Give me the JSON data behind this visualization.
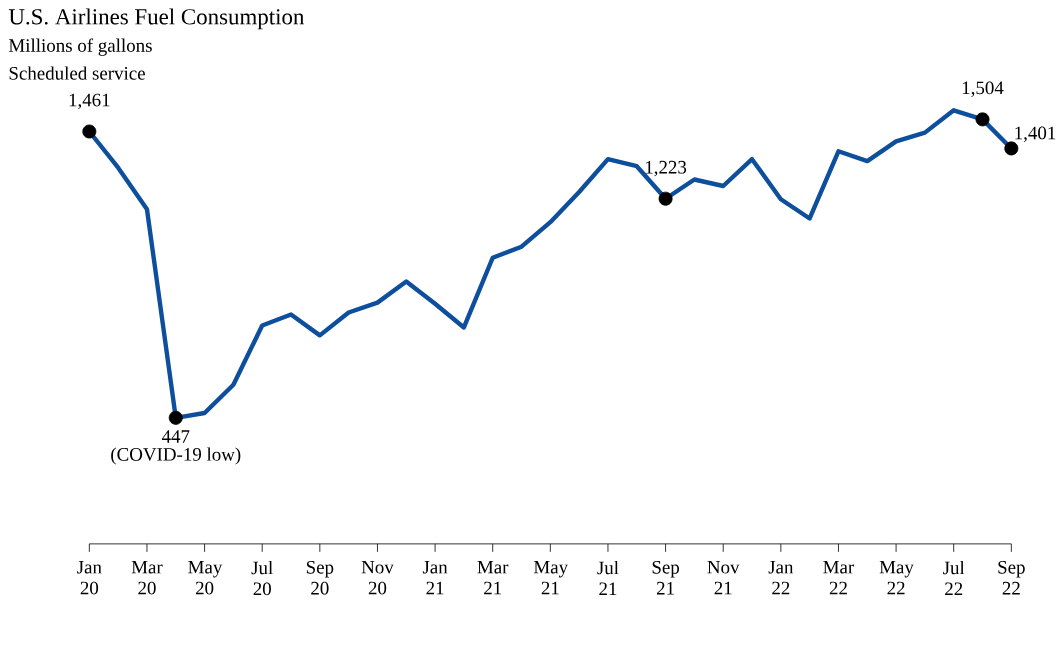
{
  "chart_data": {
    "type": "line",
    "title": "U.S. Airlines Fuel Consumption",
    "subtitle": "Millions of gallons",
    "annotations": [
      "Scheduled service",
      {
        "text": "(COVID-19 low)",
        "y": 447
      }
    ],
    "categories": [
      "Jan 20",
      null,
      "Mar 20",
      null,
      "May 20",
      null,
      "Jul 20",
      null,
      "Sep 20",
      null,
      "Nov 20",
      null,
      "Jan 21",
      null,
      "Mar 21",
      null,
      "May 21",
      null,
      "Jul 21",
      null,
      "Sep 21",
      null,
      "Nov 21",
      null,
      "Jan 22",
      null,
      "Mar 22",
      null,
      "May 22",
      null,
      "Jul 22",
      null,
      "Sep 22"
    ],
    "series": [
      {
        "color": "#0d4f9c",
        "values": [
          1461,
          1333,
          1186,
          447,
          464,
          564,
          774,
          813,
          739,
          820,
          855,
          930,
          851,
          767,
          1014,
          1053,
          1140,
          1247,
          1363,
          1338,
          1223,
          1291,
          1268,
          1363,
          1221,
          1153,
          1391,
          1356,
          1426,
          1457,
          1536,
          1504,
          1401
        ],
        "value_labels": [
          "1,461",
          null,
          null,
          "447",
          null,
          null,
          null,
          null,
          null,
          null,
          null,
          null,
          null,
          null,
          null,
          null,
          null,
          null,
          null,
          null,
          "1,223",
          null,
          null,
          null,
          null,
          null,
          null,
          null,
          null,
          null,
          null,
          "1,504",
          "1,401"
        ]
      }
    ],
    "tick_labels": "x"
  }
}
